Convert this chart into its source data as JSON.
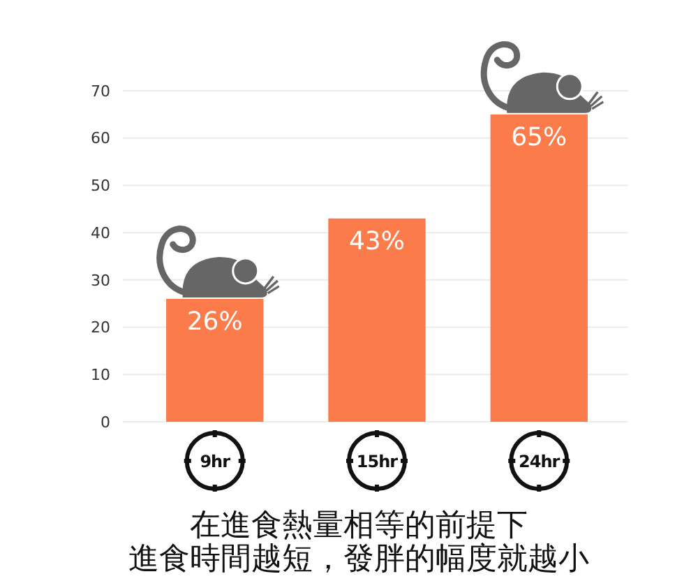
{
  "chart_data": {
    "type": "bar",
    "categories": [
      "9hr",
      "15hr",
      "24hr"
    ],
    "values": [
      26,
      43,
      65
    ],
    "color": "#fc7b4b",
    "value_labels": [
      "26%",
      "43%",
      "65%"
    ],
    "ylim": [
      0,
      70
    ],
    "yticks": [
      0,
      10,
      20,
      30,
      40,
      50,
      60,
      70
    ],
    "grid": "y",
    "annotations": [
      "在進食熱量相等的前提下",
      "進食時間越短，發胖的幅度就越小"
    ]
  }
}
